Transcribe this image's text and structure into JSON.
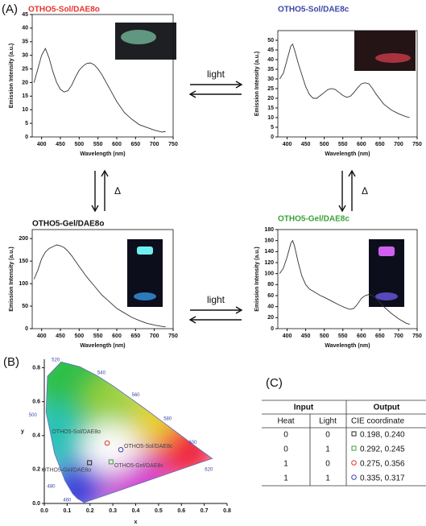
{
  "panel_labels": [
    "(A)",
    "(B)",
    "(C)"
  ],
  "arrow_labels": [
    "light",
    "light",
    "Δ",
    "Δ"
  ],
  "chart_data": [
    {
      "type": "line",
      "title": "OTHO5-Sol/DAE8o",
      "title_color": "#e8322d",
      "xlabel": "Wavelength (nm)",
      "ylabel": "Emission Intensity (a.u.)",
      "color": "#333333",
      "x": [
        380,
        390,
        400,
        410,
        420,
        430,
        440,
        450,
        460,
        470,
        480,
        490,
        500,
        510,
        520,
        530,
        540,
        550,
        560,
        580,
        600,
        620,
        640,
        660,
        680,
        700,
        720,
        730
      ],
      "values": [
        20,
        25,
        30,
        32.5,
        29,
        24,
        20,
        17.5,
        16.5,
        17,
        19,
        22,
        24.5,
        26,
        27,
        27.2,
        26.5,
        25,
        23,
        18,
        13,
        9,
        6.5,
        4.5,
        3.5,
        2.5,
        1.8,
        2
      ],
      "xlim": [
        375,
        750
      ],
      "xticks": [
        400,
        450,
        500,
        550,
        600,
        650,
        700,
        750
      ],
      "ylim": [
        0,
        45
      ],
      "yticks": [
        0,
        5,
        10,
        15,
        20,
        25,
        30,
        35,
        40,
        45
      ]
    },
    {
      "type": "line",
      "title": "OTHO5-Sol/DAE8c",
      "title_color": "#3b46a8",
      "xlabel": "Wavelength (nm)",
      "ylabel": "Emission Intensity (a.u.)",
      "color": "#333333",
      "x": [
        380,
        390,
        400,
        410,
        415,
        420,
        430,
        440,
        450,
        460,
        470,
        480,
        490,
        500,
        510,
        520,
        530,
        540,
        550,
        560,
        570,
        580,
        590,
        600,
        610,
        620,
        630,
        640,
        660,
        680,
        700,
        720,
        730
      ],
      "values": [
        30,
        33,
        40,
        47,
        48,
        45,
        38,
        32,
        26,
        22,
        20,
        20,
        21.5,
        23,
        24.5,
        25,
        24.5,
        23,
        21.5,
        20.5,
        21,
        23,
        25.5,
        27.5,
        28,
        27.5,
        25,
        22,
        17,
        14,
        12,
        10.5,
        10
      ],
      "xlim": [
        375,
        750
      ],
      "xticks": [
        400,
        450,
        500,
        550,
        600,
        650,
        700,
        750
      ],
      "ylim": [
        0,
        55
      ],
      "yticks": [
        0,
        5,
        10,
        15,
        20,
        25,
        30,
        35,
        40,
        45,
        50
      ]
    },
    {
      "type": "line",
      "title": "OTHO5-Gel/DAE8o",
      "title_color": "#111111",
      "xlabel": "Wavelength (nm)",
      "ylabel": "Emission Intensity (a.u.)",
      "color": "#333333",
      "x": [
        380,
        390,
        400,
        410,
        420,
        430,
        440,
        450,
        460,
        470,
        480,
        490,
        500,
        520,
        540,
        560,
        580,
        600,
        620,
        640,
        660,
        680,
        700,
        720,
        730
      ],
      "values": [
        110,
        130,
        155,
        170,
        178,
        182,
        186,
        184,
        180,
        172,
        162,
        150,
        138,
        115,
        95,
        75,
        60,
        45,
        35,
        25,
        18,
        12,
        8,
        5,
        4
      ],
      "xlim": [
        375,
        750
      ],
      "xticks": [
        400,
        450,
        500,
        550,
        600,
        650,
        700,
        750
      ],
      "ylim": [
        0,
        220
      ],
      "yticks": [
        0,
        50,
        100,
        150,
        200
      ]
    },
    {
      "type": "line",
      "title": "OTHO5-Gel/DAE8c",
      "title_color": "#3aa23a",
      "xlabel": "Wavelength (nm)",
      "ylabel": "Emission Intensity (a.u.)",
      "color": "#333333",
      "x": [
        380,
        390,
        400,
        410,
        415,
        420,
        430,
        440,
        450,
        460,
        470,
        480,
        490,
        500,
        520,
        540,
        560,
        570,
        580,
        590,
        600,
        610,
        620,
        630,
        640,
        660,
        680,
        700,
        720,
        730
      ],
      "values": [
        100,
        110,
        130,
        155,
        160,
        150,
        120,
        95,
        80,
        72,
        68,
        64,
        60,
        57,
        50,
        43,
        37,
        35,
        37,
        45,
        55,
        60,
        62,
        60,
        55,
        40,
        28,
        18,
        10,
        8
      ],
      "xlim": [
        375,
        750
      ],
      "xticks": [
        400,
        450,
        500,
        550,
        600,
        650,
        700,
        750
      ],
      "ylim": [
        0,
        180
      ],
      "yticks": [
        0,
        20,
        40,
        60,
        80,
        100,
        120,
        140,
        160,
        180
      ]
    },
    {
      "type": "scatter",
      "xlabel": "x",
      "ylabel": "y",
      "xlim": [
        0,
        0.8
      ],
      "ylim": [
        0,
        0.85
      ],
      "xticks": [
        {
          "value": 0,
          "label": "0.0"
        },
        0.1,
        0.2,
        0.3,
        0.4,
        0.5,
        0.6,
        0.7,
        0.8
      ],
      "yticks": [
        {
          "value": 0,
          "label": "0.0"
        },
        0.2,
        0.4,
        0.6,
        0.8
      ],
      "wavelength_labels": [
        460,
        480,
        500,
        520,
        540,
        560,
        580,
        600,
        620
      ],
      "series": [
        {
          "name": "OTHO5-Sol/DAE8o",
          "color": "#e8322d",
          "marker": "circle",
          "x": [
            0.275
          ],
          "y": [
            0.356
          ]
        },
        {
          "name": "OTHO5-Sol/DAE8c",
          "color": "#3b46a8",
          "marker": "circle",
          "x": [
            0.335
          ],
          "y": [
            0.317
          ]
        },
        {
          "name": "OTHO5-Gel/DAE8o",
          "color": "#222222",
          "marker": "square",
          "x": [
            0.198
          ],
          "y": [
            0.24
          ]
        },
        {
          "name": "OTHO5-Gel/DAE8c",
          "color": "#3aa23a",
          "marker": "square",
          "x": [
            0.292
          ],
          "y": [
            0.245
          ]
        }
      ]
    }
  ],
  "table": {
    "header": [
      [
        "Input",
        "Output"
      ],
      [
        "Heat",
        "Light",
        "CIE coordinate"
      ]
    ],
    "rows": [
      [
        "0",
        "0",
        "0.198, 0.240"
      ],
      [
        "0",
        "1",
        "0.292, 0.245"
      ],
      [
        "1",
        "0",
        "0.275, 0.356"
      ],
      [
        "1",
        "1",
        "0.335, 0.317"
      ]
    ]
  }
}
